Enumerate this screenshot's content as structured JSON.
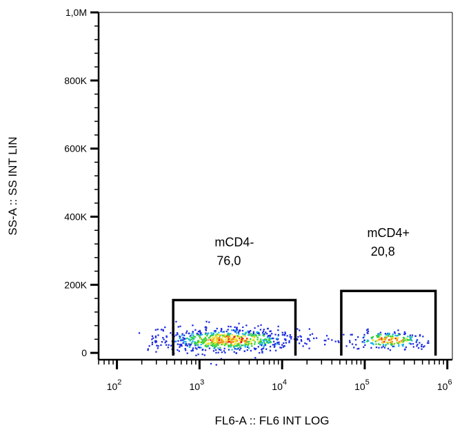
{
  "chart_data": {
    "type": "scatter",
    "plot_style": "flow cytometry density dot plot",
    "xlabel": "FL6-A :: FL6 INT LOG",
    "ylabel": "SS-A :: SS INT LIN",
    "x_scale": "log",
    "y_scale": "linear",
    "xlim": [
      60,
      1150000
    ],
    "ylim": [
      -20000,
      1000000
    ],
    "x_ticks": [
      {
        "value": 100,
        "base": "10",
        "exp": "2"
      },
      {
        "value": 1000,
        "base": "10",
        "exp": "3"
      },
      {
        "value": 10000,
        "base": "10",
        "exp": "4"
      },
      {
        "value": 100000,
        "base": "10",
        "exp": "5"
      },
      {
        "value": 1000000,
        "base": "10",
        "exp": "6"
      }
    ],
    "y_ticks": [
      {
        "value": 0,
        "label": "0"
      },
      {
        "value": 200000,
        "label": "200K"
      },
      {
        "value": 400000,
        "label": "400K"
      },
      {
        "value": 600000,
        "label": "600K"
      },
      {
        "value": 800000,
        "label": "800K"
      },
      {
        "value": 1000000,
        "label": "1,0M"
      }
    ],
    "gates": [
      {
        "name": "mCD4-",
        "percent": "76,0",
        "x_range": [
          480,
          14500
        ],
        "y_range": [
          -20000,
          155000
        ]
      },
      {
        "name": "mCD4+",
        "percent": "20,8",
        "x_range": [
          52000,
          720000
        ],
        "y_range": [
          -20000,
          182000
        ]
      }
    ],
    "populations": [
      {
        "label": "mCD4-",
        "center_x": 2200,
        "center_y": 40000,
        "spread_log_x": 0.42,
        "spread_y": 18000,
        "count": 760
      },
      {
        "label": "mCD4+",
        "center_x": 200000,
        "center_y": 40000,
        "spread_log_x": 0.24,
        "spread_y": 14000,
        "count": 210
      }
    ],
    "density_colors": [
      "#1f2de0",
      "#18b4e8",
      "#2ed13a",
      "#f2e22a",
      "#f08a1a",
      "#e81c1c"
    ],
    "grid": false,
    "legend": "none"
  }
}
